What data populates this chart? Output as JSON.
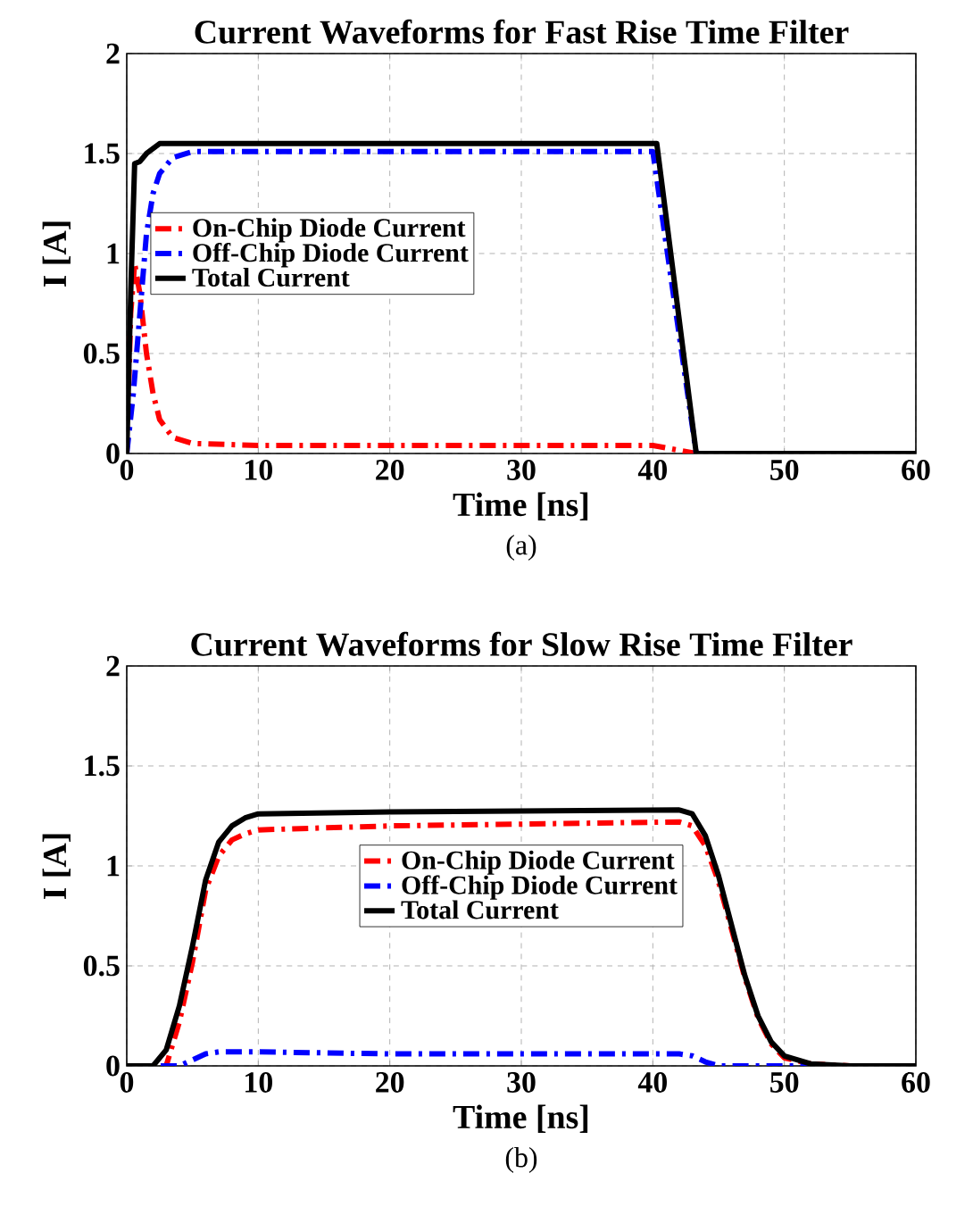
{
  "chart_data": [
    {
      "type": "line",
      "title": "Current Waveforms for Fast Rise Time Filter",
      "xlabel": "Time [ns]",
      "ylabel": "I [A]",
      "xlim": [
        0,
        60
      ],
      "ylim": [
        0,
        2
      ],
      "xticks": [
        0,
        10,
        20,
        30,
        40,
        50,
        60
      ],
      "yticks": [
        0,
        0.5,
        1,
        1.5,
        2
      ],
      "grid": true,
      "legend": "left",
      "annotations": [
        "(a)"
      ],
      "series": [
        {
          "name": "On-Chip Diode Current",
          "color": "#ff0000",
          "line_style": "dashed",
          "x": [
            0,
            0.3,
            0.6,
            1,
            1.5,
            2,
            2.5,
            3.5,
            5,
            10,
            40,
            43.3,
            60
          ],
          "values": [
            0,
            0.7,
            0.95,
            0.8,
            0.5,
            0.3,
            0.17,
            0.08,
            0.05,
            0.04,
            0.04,
            0,
            0
          ]
        },
        {
          "name": "Off-Chip Diode Current",
          "color": "#0000ff",
          "line_style": "dashed",
          "x": [
            0,
            0.5,
            1,
            1.5,
            2,
            2.5,
            3.5,
            5,
            40,
            43.3,
            60
          ],
          "values": [
            0,
            0.3,
            0.7,
            1.1,
            1.3,
            1.4,
            1.48,
            1.51,
            1.51,
            0,
            0
          ]
        },
        {
          "name": "Total Current",
          "color": "#000000",
          "line_style": "solid",
          "x": [
            0,
            0.3,
            0.6,
            1,
            1.5,
            2.5,
            40.3,
            43.3,
            60
          ],
          "values": [
            0,
            0.8,
            1.45,
            1.46,
            1.5,
            1.55,
            1.55,
            0,
            0
          ]
        }
      ]
    },
    {
      "type": "line",
      "title": "Current Waveforms for Slow Rise Time Filter",
      "xlabel": "Time [ns]",
      "ylabel": "I [A]",
      "xlim": [
        0,
        60
      ],
      "ylim": [
        0,
        2
      ],
      "xticks": [
        0,
        10,
        20,
        30,
        40,
        50,
        60
      ],
      "yticks": [
        0,
        0.5,
        1,
        1.5,
        2
      ],
      "grid": true,
      "legend": "center",
      "annotations": [
        "(b)"
      ],
      "series": [
        {
          "name": "On-Chip Diode Current",
          "color": "#ff0000",
          "line_style": "dashed",
          "x": [
            0,
            3,
            4,
            5,
            6,
            7,
            8,
            9,
            10,
            20,
            42,
            43,
            44,
            45,
            46,
            47,
            48,
            49,
            50,
            52,
            55,
            60
          ],
          "values": [
            0,
            0,
            0.22,
            0.52,
            0.88,
            1.05,
            1.13,
            1.16,
            1.18,
            1.2,
            1.22,
            1.2,
            1.1,
            0.92,
            0.68,
            0.44,
            0.24,
            0.11,
            0.04,
            0.01,
            0,
            0
          ]
        },
        {
          "name": "Off-Chip Diode Current",
          "color": "#0000ff",
          "line_style": "dashed",
          "x": [
            0,
            4,
            5,
            6,
            7,
            10,
            20,
            42,
            43,
            44,
            45,
            60
          ],
          "values": [
            0,
            0,
            0.03,
            0.06,
            0.07,
            0.07,
            0.06,
            0.06,
            0.05,
            0.02,
            0,
            0
          ]
        },
        {
          "name": "Total Current",
          "color": "#000000",
          "line_style": "solid",
          "x": [
            0,
            2,
            3,
            4,
            5,
            6,
            7,
            8,
            9,
            10,
            20,
            42,
            43,
            44,
            45,
            46,
            47,
            48,
            49,
            50,
            52,
            55,
            60
          ],
          "values": [
            0,
            0,
            0.08,
            0.3,
            0.6,
            0.93,
            1.12,
            1.2,
            1.24,
            1.26,
            1.27,
            1.28,
            1.26,
            1.15,
            0.95,
            0.7,
            0.45,
            0.25,
            0.12,
            0.05,
            0.01,
            0,
            0
          ]
        }
      ]
    }
  ]
}
